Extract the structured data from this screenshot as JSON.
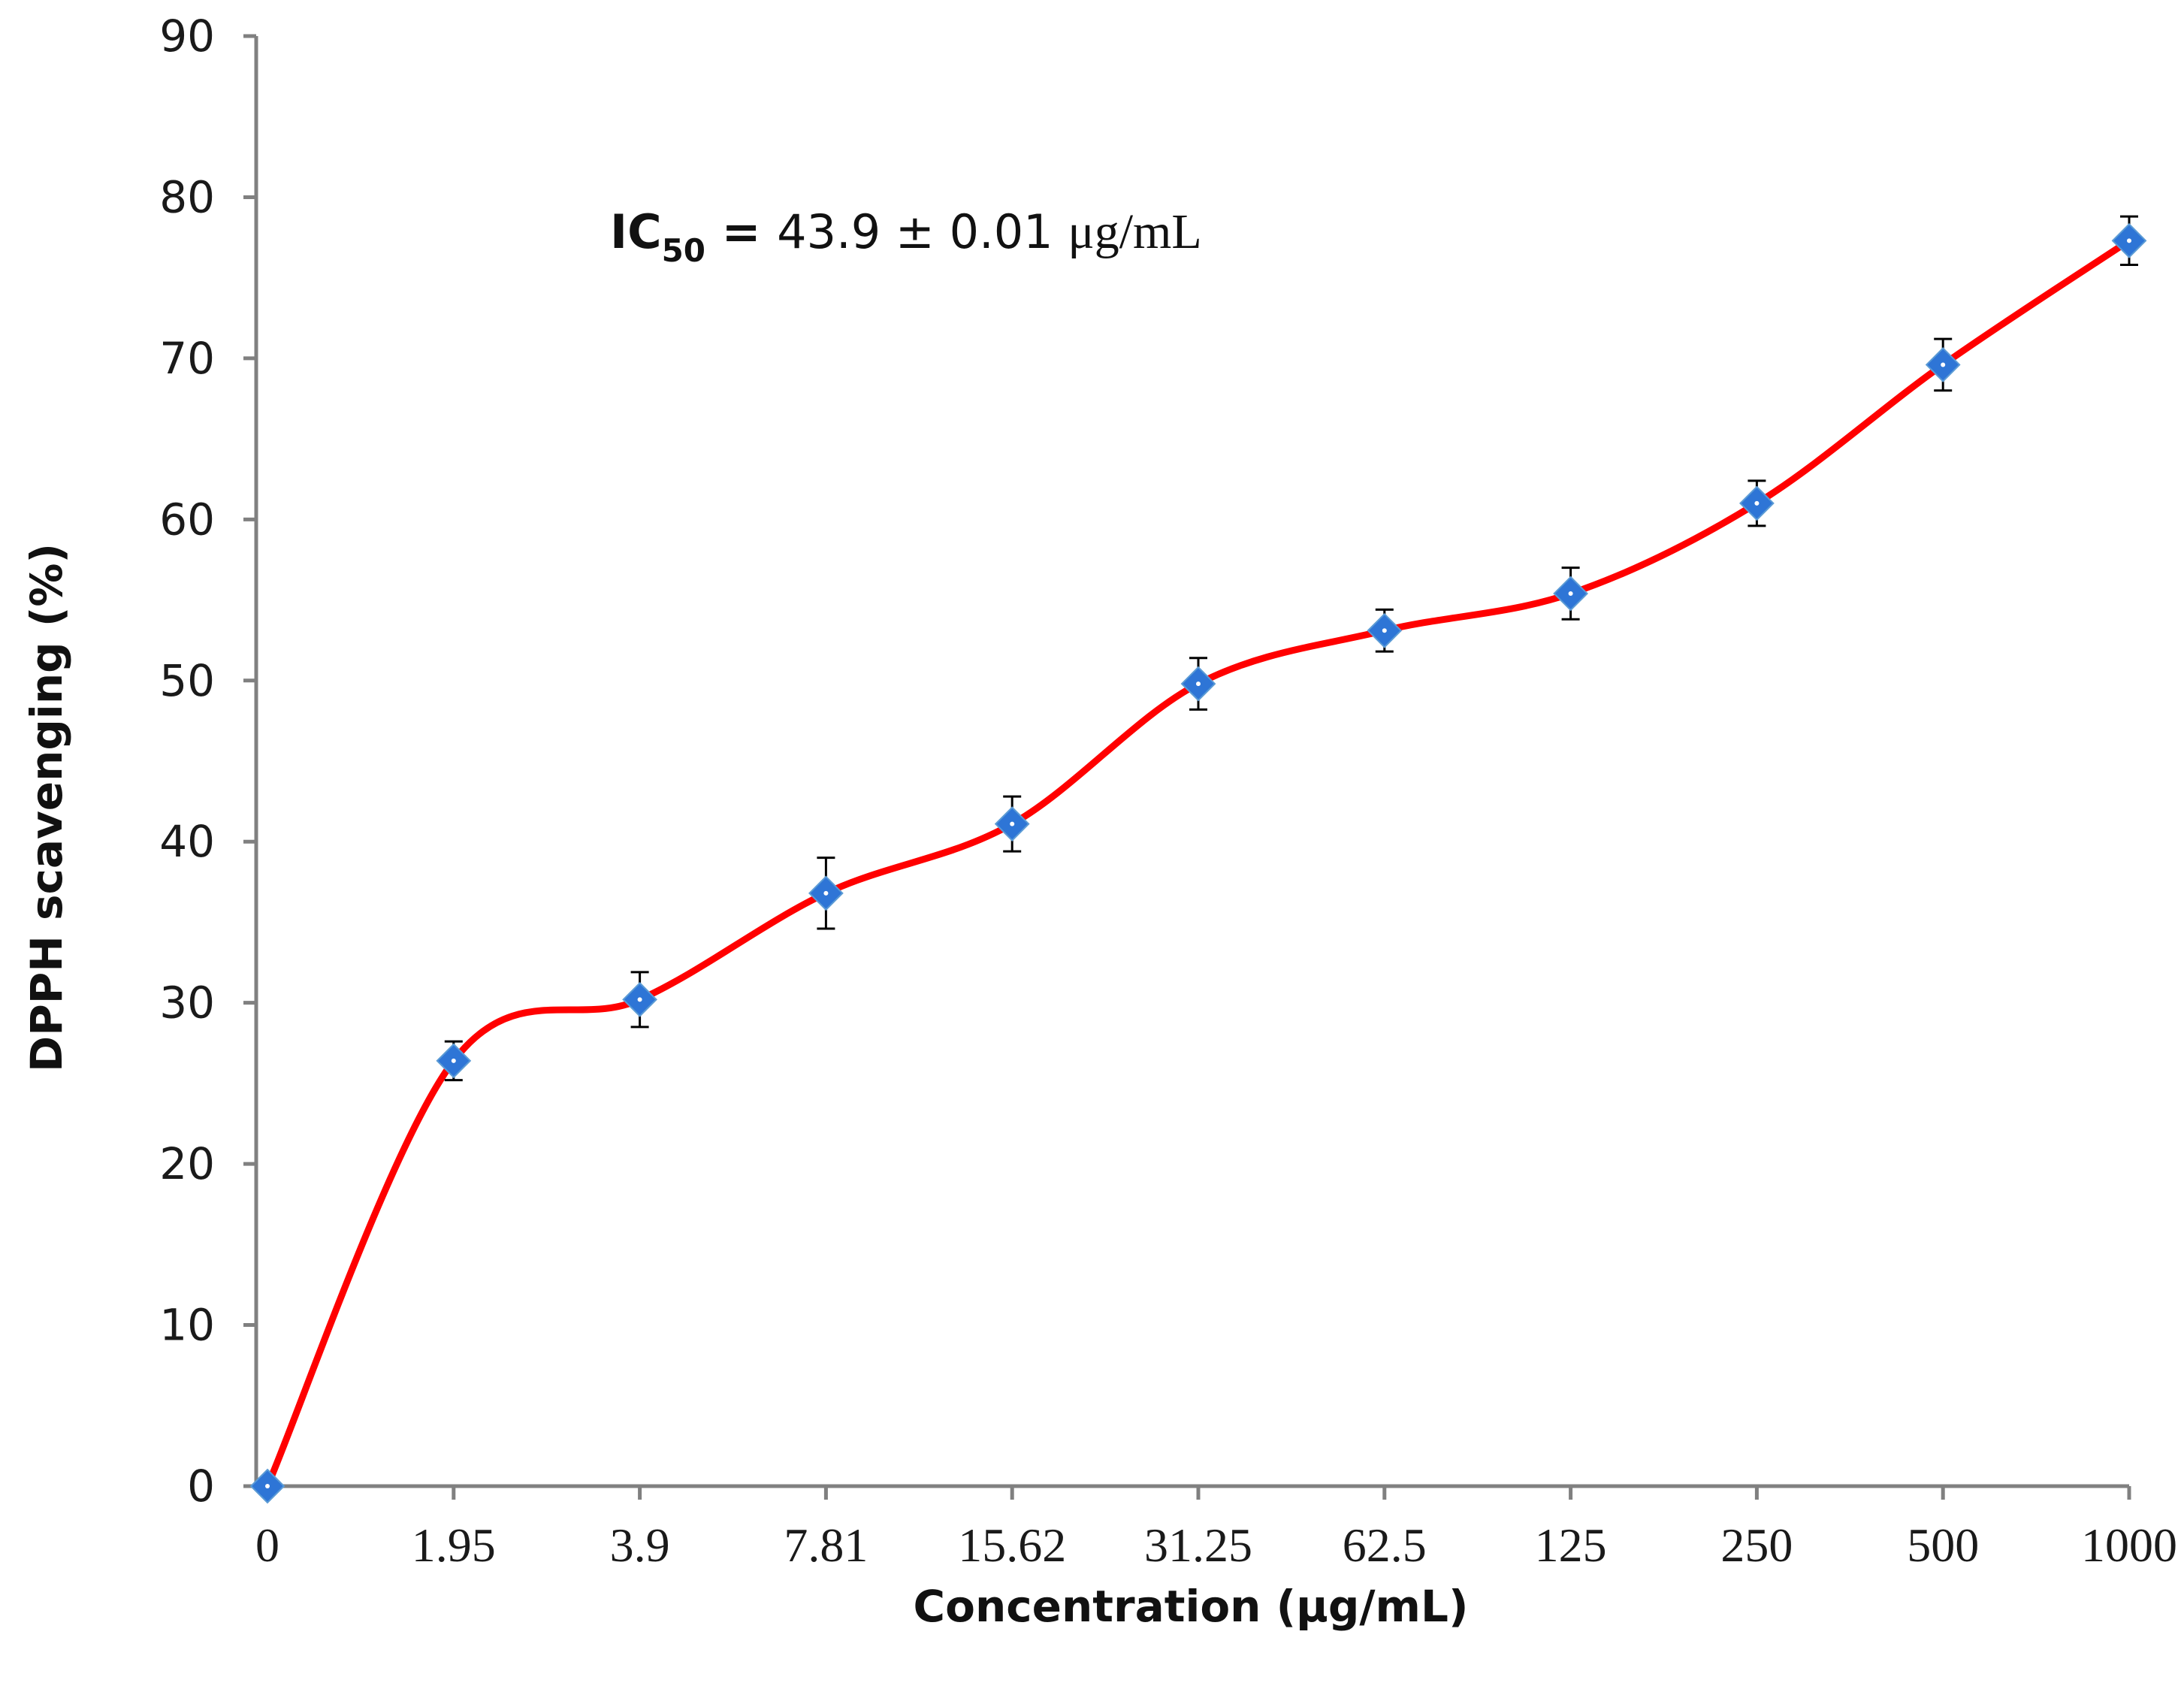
{
  "chart_data": {
    "type": "line",
    "title": "",
    "xlabel": "Concentration (μg/mL)",
    "ylabel": "DPPH scavenging (%)",
    "categories": [
      "0",
      "1.95",
      "3.9",
      "7.81",
      "15.62",
      "31.25",
      "62.5",
      "125",
      "250",
      "500",
      "1000"
    ],
    "yticks": [
      "0",
      "10",
      "20",
      "30",
      "40",
      "50",
      "60",
      "70",
      "80",
      "90"
    ],
    "ylim": [
      0,
      90
    ],
    "grid": false,
    "series": [
      {
        "name": "DPPH scavenging",
        "values": [
          0,
          26.4,
          30.2,
          36.8,
          41.1,
          49.8,
          53.1,
          55.4,
          61.0,
          69.6,
          77.3
        ],
        "errors": [
          0,
          1.2,
          1.7,
          2.2,
          1.7,
          1.6,
          1.3,
          1.6,
          1.4,
          1.6,
          1.5
        ],
        "line_color": "#ff0000",
        "marker_color": "#2e75d6"
      }
    ],
    "annotation": {
      "prefix": "IC",
      "subscript": "50",
      "equals": " = ",
      "value": "43.9 ± 0.01 ",
      "unit": "μg/mL"
    }
  }
}
